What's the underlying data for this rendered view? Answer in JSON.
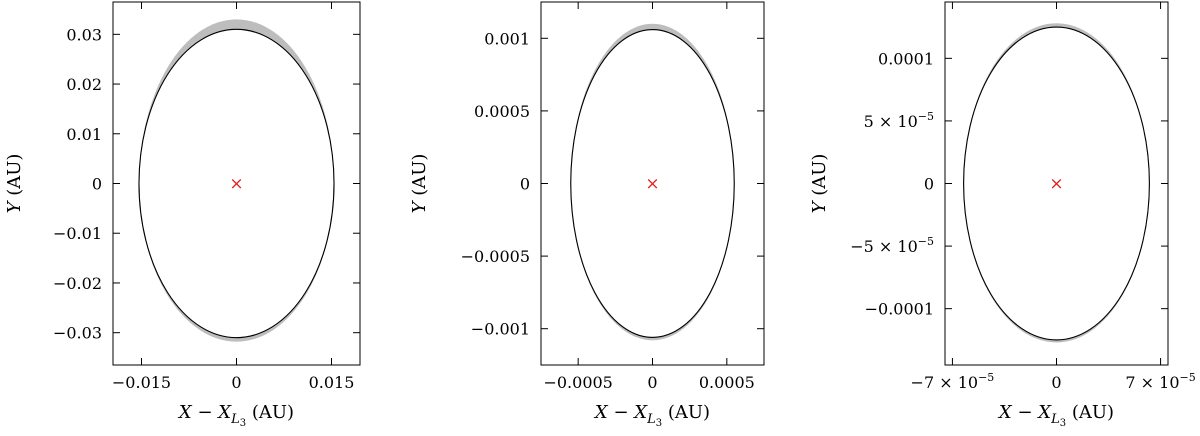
{
  "chart_data": [
    {
      "type": "line",
      "xlabel": {
        "var": "X",
        "minus": " − ",
        "sub_var": "X",
        "sub": "L",
        "subsub": "3",
        "unit": " (AU)"
      },
      "ylabel": {
        "var": "Y",
        "unit": " (AU)"
      },
      "xlim": [
        -0.0195,
        0.0195
      ],
      "ylim": [
        -0.0365,
        0.0365
      ],
      "xticks": [
        {
          "value": -0.015,
          "label": "−0.015"
        },
        {
          "value": 0,
          "label": "0"
        },
        {
          "value": 0.015,
          "label": "0.015"
        }
      ],
      "yticks": [
        {
          "value": 0.03,
          "label": "0.03"
        },
        {
          "value": 0.02,
          "label": "0.02"
        },
        {
          "value": 0.01,
          "label": "0.01"
        },
        {
          "value": 0,
          "label": "0"
        },
        {
          "value": -0.01,
          "label": "−0.01"
        },
        {
          "value": -0.02,
          "label": "−0.02"
        },
        {
          "value": -0.03,
          "label": "−0.03"
        }
      ],
      "orbit": {
        "semi_x": 0.0154,
        "semi_y": 0.031
      },
      "envelope": {
        "semi_x_max": 0.0154,
        "semi_y_top_max": 0.033,
        "semi_y_bottom_max": 0.0318,
        "color": "#bdbdbd"
      },
      "marker": {
        "x": 0,
        "y": 0,
        "symbol": "×",
        "color": "#e02020"
      },
      "grid": false
    },
    {
      "type": "line",
      "xlabel": {
        "var": "X",
        "minus": " − ",
        "sub_var": "X",
        "sub": "L",
        "subsub": "3",
        "unit": " (AU)"
      },
      "ylabel": {
        "var": "Y",
        "unit": " (AU)"
      },
      "xlim": [
        -0.00075,
        0.00075
      ],
      "ylim": [
        -0.00125,
        0.00125
      ],
      "xticks": [
        {
          "value": -0.0005,
          "label": "−0.0005"
        },
        {
          "value": 0,
          "label": "0"
        },
        {
          "value": 0.0005,
          "label": "0.0005"
        }
      ],
      "yticks": [
        {
          "value": 0.001,
          "label": "0.001"
        },
        {
          "value": 0.0005,
          "label": "0.0005"
        },
        {
          "value": 0,
          "label": "0"
        },
        {
          "value": -0.0005,
          "label": "−0.0005"
        },
        {
          "value": -0.001,
          "label": "−0.001"
        }
      ],
      "orbit": {
        "semi_x": 0.00055,
        "semi_y": 0.00106
      },
      "envelope": {
        "semi_x_max": 0.00055,
        "semi_y_top_max": 0.0011,
        "semi_y_bottom_max": 0.00108,
        "color": "#bdbdbd"
      },
      "marker": {
        "x": 0,
        "y": 0,
        "symbol": "×",
        "color": "#e02020"
      },
      "grid": false
    },
    {
      "type": "line",
      "xlabel": {
        "var": "X",
        "minus": " − ",
        "sub_var": "X",
        "sub": "L",
        "subsub": "3",
        "unit": " (AU)"
      },
      "ylabel": {
        "var": "Y",
        "unit": " (AU)"
      },
      "xlim": [
        -7.5e-05,
        7.5e-05
      ],
      "ylim": [
        -0.000145,
        0.000145
      ],
      "xticks": [
        {
          "value": -7e-05,
          "label": "−7 × 10",
          "exp": "−5"
        },
        {
          "value": 0,
          "label": "0"
        },
        {
          "value": 7e-05,
          "label": "7 × 10",
          "exp": "−5"
        }
      ],
      "yticks": [
        {
          "value": 0.0001,
          "label": "0.0001"
        },
        {
          "value": 5e-05,
          "label": "5 × 10",
          "exp": "−5"
        },
        {
          "value": 0,
          "label": "0"
        },
        {
          "value": -5e-05,
          "label": "−5 × 10",
          "exp": "−5"
        },
        {
          "value": -0.0001,
          "label": "−0.0001"
        }
      ],
      "orbit": {
        "semi_x": 6.25e-05,
        "semi_y": 0.000125
      },
      "envelope": {
        "semi_x_max": 6.25e-05,
        "semi_y_top_max": 0.000128,
        "semi_y_bottom_max": 0.000127,
        "color": "#bdbdbd"
      },
      "marker": {
        "x": 0,
        "y": 0,
        "symbol": "×",
        "color": "#e02020"
      },
      "grid": false
    }
  ]
}
